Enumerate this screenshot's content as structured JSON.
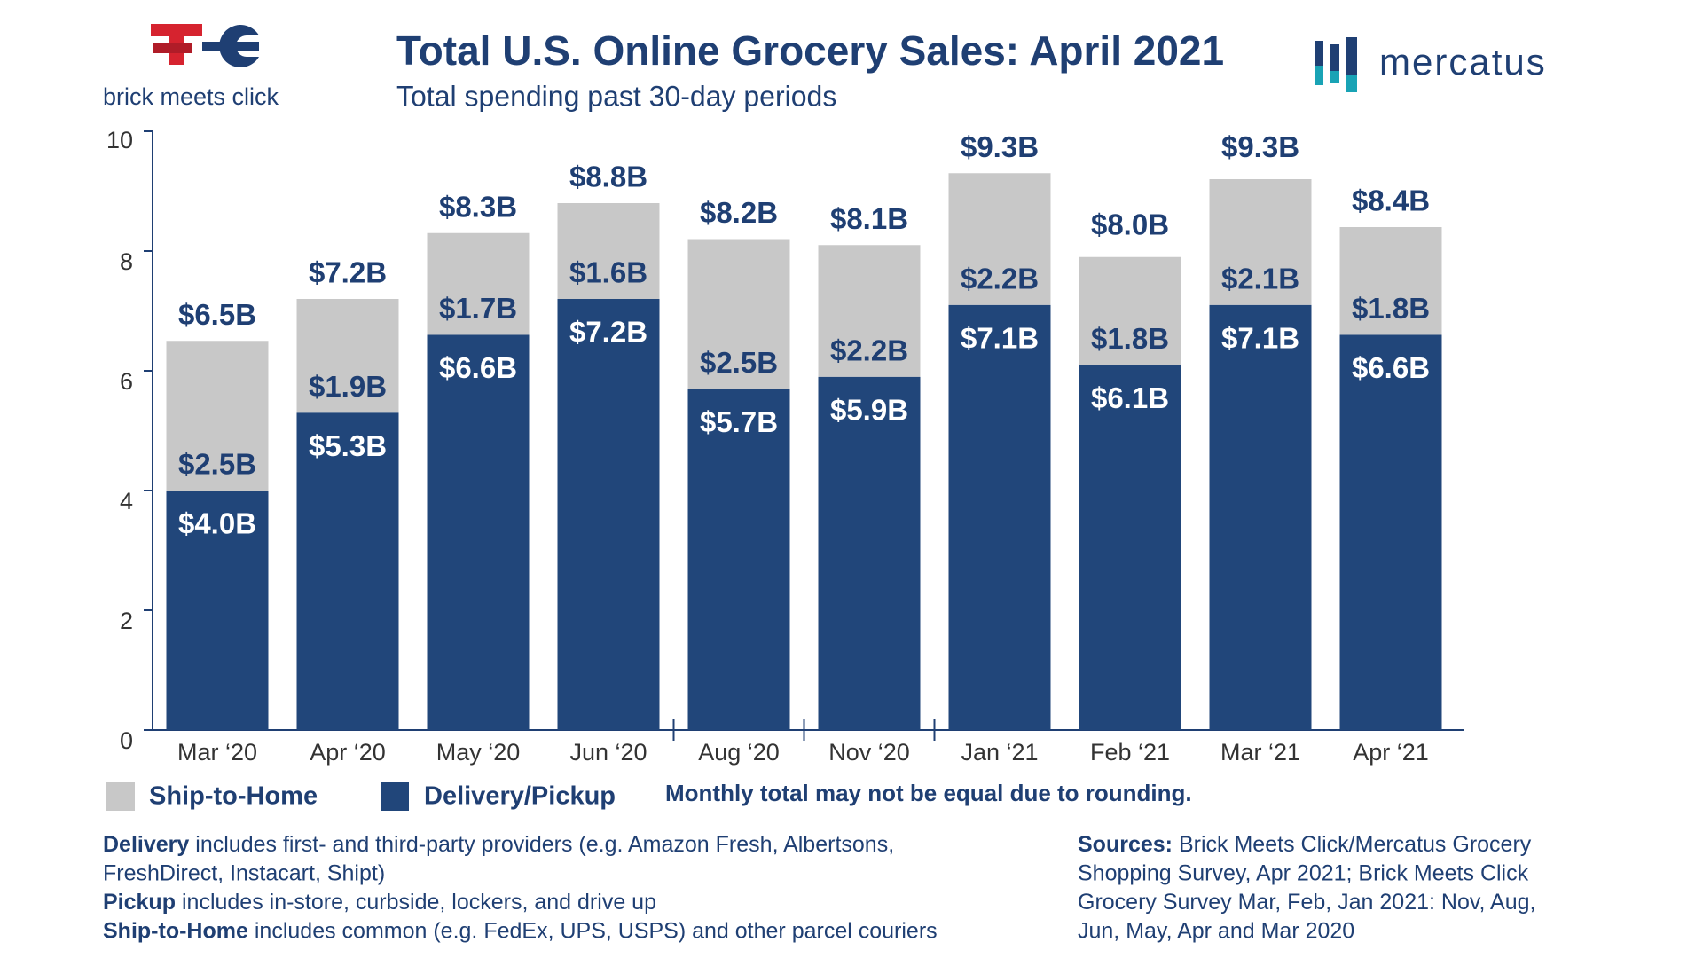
{
  "brand_left": "brick meets click",
  "brand_right": "mercatus",
  "chart_data": {
    "type": "stacked_bar",
    "title": "Total U.S. Online Grocery Sales: April 2021",
    "subtitle": "Total spending past 30-day periods",
    "categories": [
      "Mar ‘20",
      "Apr ‘20",
      "May ‘20",
      "Jun ‘20",
      "Aug ‘20",
      "Nov ‘20",
      "Jan ‘21",
      "Feb ‘21",
      "Mar ‘21",
      "Apr ‘21"
    ],
    "series": [
      {
        "name": "Delivery/Pickup",
        "color": "#21467a",
        "values": [
          4.0,
          5.3,
          6.6,
          7.2,
          5.7,
          5.9,
          7.1,
          6.1,
          7.1,
          6.6
        ],
        "value_labels": [
          "$4.0B",
          "$5.3B",
          "$6.6B",
          "$7.2B",
          "$5.7B",
          "$5.9B",
          "$7.1B",
          "$6.1B",
          "$7.1B",
          "$6.6B"
        ]
      },
      {
        "name": "Ship-to-Home",
        "color": "#c8c8c8",
        "values": [
          2.5,
          1.9,
          1.7,
          1.6,
          2.5,
          2.2,
          2.2,
          1.8,
          2.1,
          1.8
        ],
        "value_labels": [
          "$2.5B",
          "$1.9B",
          "$1.7B",
          "$1.6B",
          "$2.5B",
          "$2.2B",
          "$2.2B",
          "$1.8B",
          "$2.1B",
          "$1.8B"
        ]
      }
    ],
    "totals": {
      "values": [
        6.5,
        7.2,
        8.3,
        8.8,
        8.2,
        8.1,
        9.3,
        8.0,
        9.3,
        8.4
      ],
      "value_labels": [
        "$6.5B",
        "$7.2B",
        "$8.3B",
        "$8.8B",
        "$8.2B",
        "$8.1B",
        "$9.3B",
        "$8.0B",
        "$9.3B",
        "$8.4B"
      ]
    },
    "ylim": [
      0,
      10
    ],
    "yticks": [
      0,
      2,
      4,
      6,
      8,
      10
    ],
    "grid": false,
    "note": "Monthly total may not be equal due to rounding."
  },
  "footnotes": [
    {
      "bold": "Delivery",
      "text": "includes first- and third-party providers (e.g. Amazon Fresh, Albertsons,"
    },
    {
      "text": "FreshDirect, Instacart, Shipt)"
    },
    {
      "bold": "Pickup",
      "text": "includes in-store, curbside, lockers, and drive up"
    },
    {
      "bold": "Ship-to-Home",
      "text": "includes common (e.g. FedEx, UPS, USPS) and other parcel couriers"
    }
  ],
  "sources": [
    {
      "bold": "Sources:",
      "text": "Brick Meets Click/Mercatus Grocery"
    },
    {
      "text": "Shopping Survey, Apr 2021; Brick Meets Click"
    },
    {
      "text": "Grocery Survey Mar, Feb, Jan 2021: Nov, Aug,"
    },
    {
      "text": "Jun, May, Apr and Mar 2020"
    }
  ]
}
